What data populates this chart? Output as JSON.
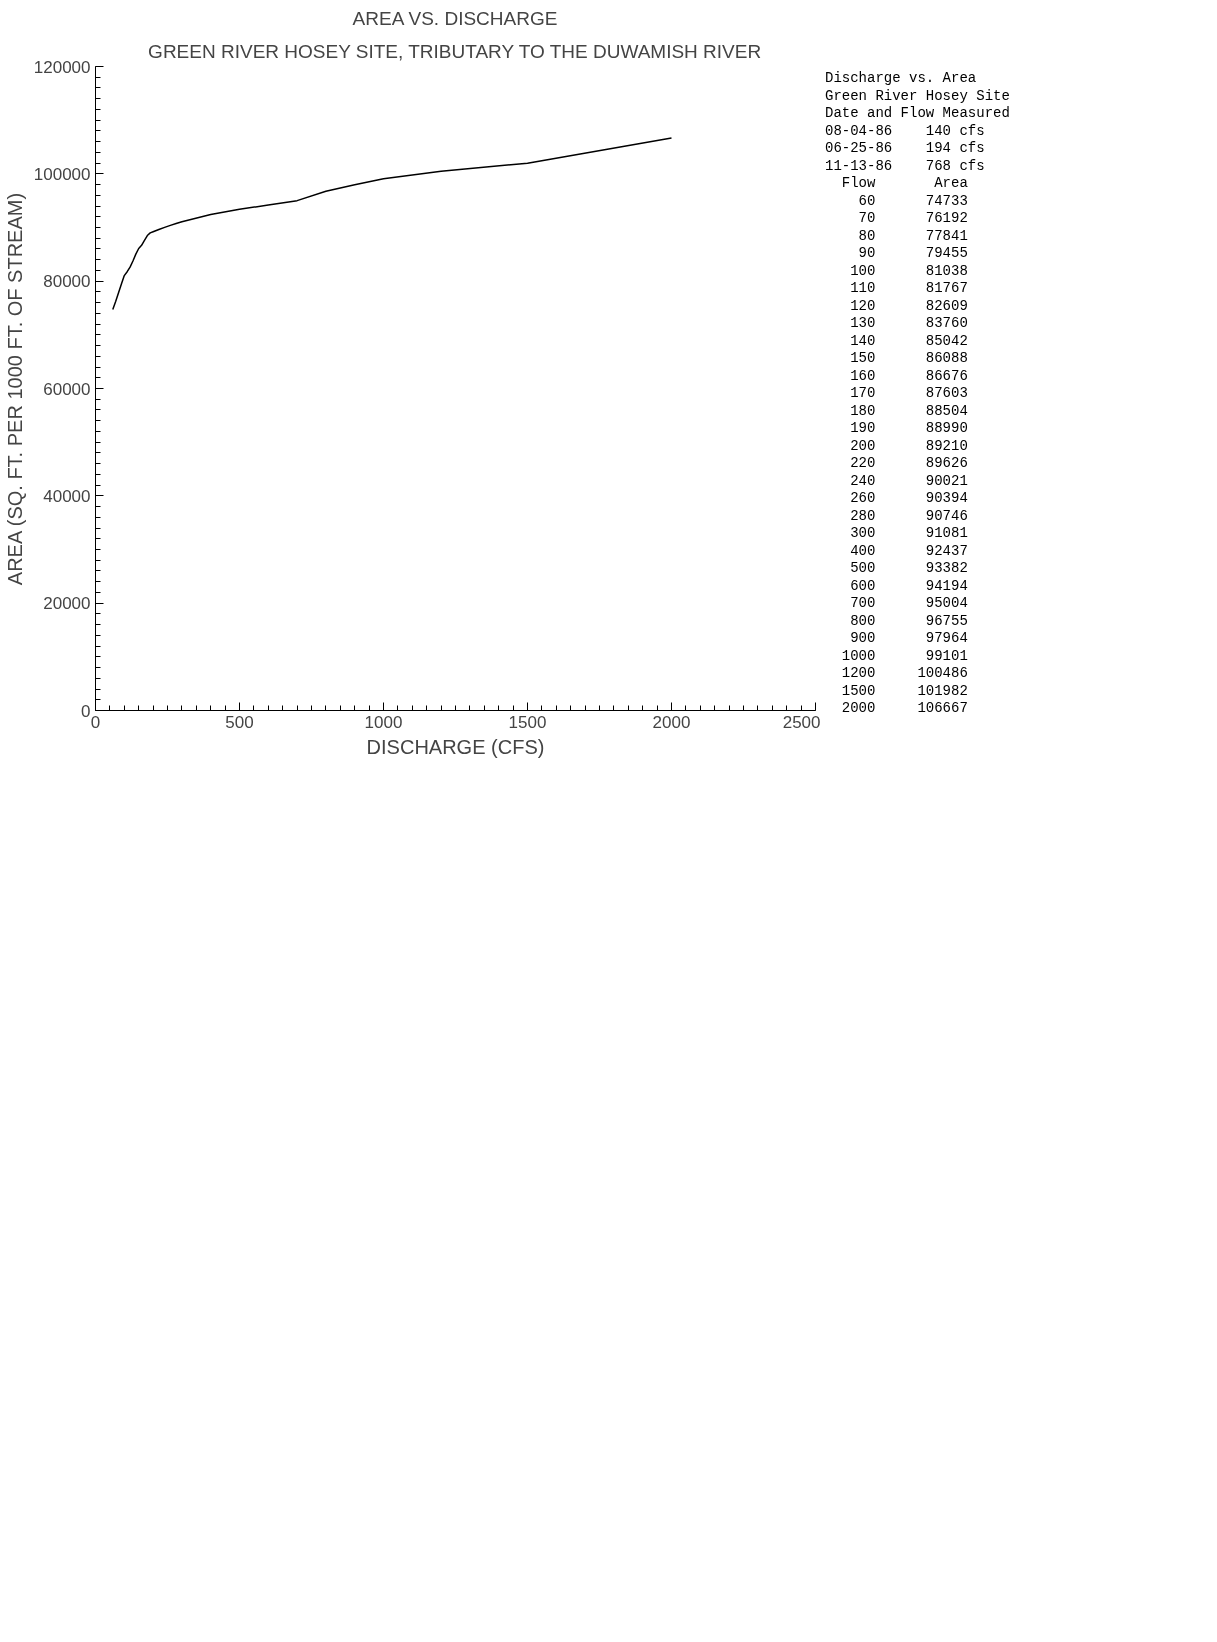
{
  "chart_data": {
    "type": "line",
    "title": "AREA VS. DISCHARGE",
    "subtitle": "GREEN RIVER HOSEY SITE, TRIBUTARY TO THE DUWAMISH RIVER",
    "xlabel": "DISCHARGE (CFS)",
    "ylabel": "AREA (SQ. FT. PER 1000 FT. OF STREAM)",
    "annotations": [
      "Discharge vs. Area",
      "Green River Hosey Site",
      "Date and Flow Measured",
      "08-04-86    140 cfs",
      "06-25-86    194 cfs",
      "11-13-86    768 cfs",
      "  Flow       Area",
      "    60      74733",
      "    70      76192",
      "    80      77841",
      "    90      79455",
      "   100      81038",
      "   110      81767",
      "   120      82609",
      "   130      83760",
      "   140      85042",
      "   150      86088",
      "   160      86676",
      "   170      87603",
      "   180      88504",
      "   190      88990",
      "   200      89210",
      "   220      89626",
      "   240      90021",
      "   260      90394",
      "   280      90746",
      "   300      91081",
      "   400      92437",
      "   500      93382",
      "   600      94194",
      "   700      95004",
      "   800      96755",
      "   900      97964",
      "  1000      99101",
      "  1200     100486",
      "  1500     101982",
      "  2000     106667"
    ],
    "x": [
      60,
      70,
      80,
      90,
      100,
      110,
      120,
      130,
      140,
      150,
      160,
      170,
      180,
      190,
      200,
      220,
      240,
      260,
      280,
      300,
      400,
      500,
      600,
      700,
      800,
      900,
      1000,
      1200,
      1500,
      2000
    ],
    "series": [
      {
        "color": "#000000",
        "values": [
          74733,
          76192,
          77841,
          79455,
          81038,
          81767,
          82609,
          83760,
          85042,
          86088,
          86676,
          87603,
          88504,
          88990,
          89210,
          89626,
          90021,
          90394,
          90746,
          91081,
          92437,
          93382,
          94194,
          95004,
          96755,
          97964,
          99101,
          100486,
          101982,
          106667
        ]
      }
    ],
    "xlim": [
      0,
      2500
    ],
    "xticks": [
      0,
      500,
      1000,
      1500,
      2000,
      2500
    ],
    "ylim": [
      0,
      120000
    ],
    "yticks": [
      0,
      20000,
      40000,
      60000,
      80000,
      100000,
      120000
    ],
    "grid": false,
    "line_style": "solid",
    "marker": "none"
  }
}
